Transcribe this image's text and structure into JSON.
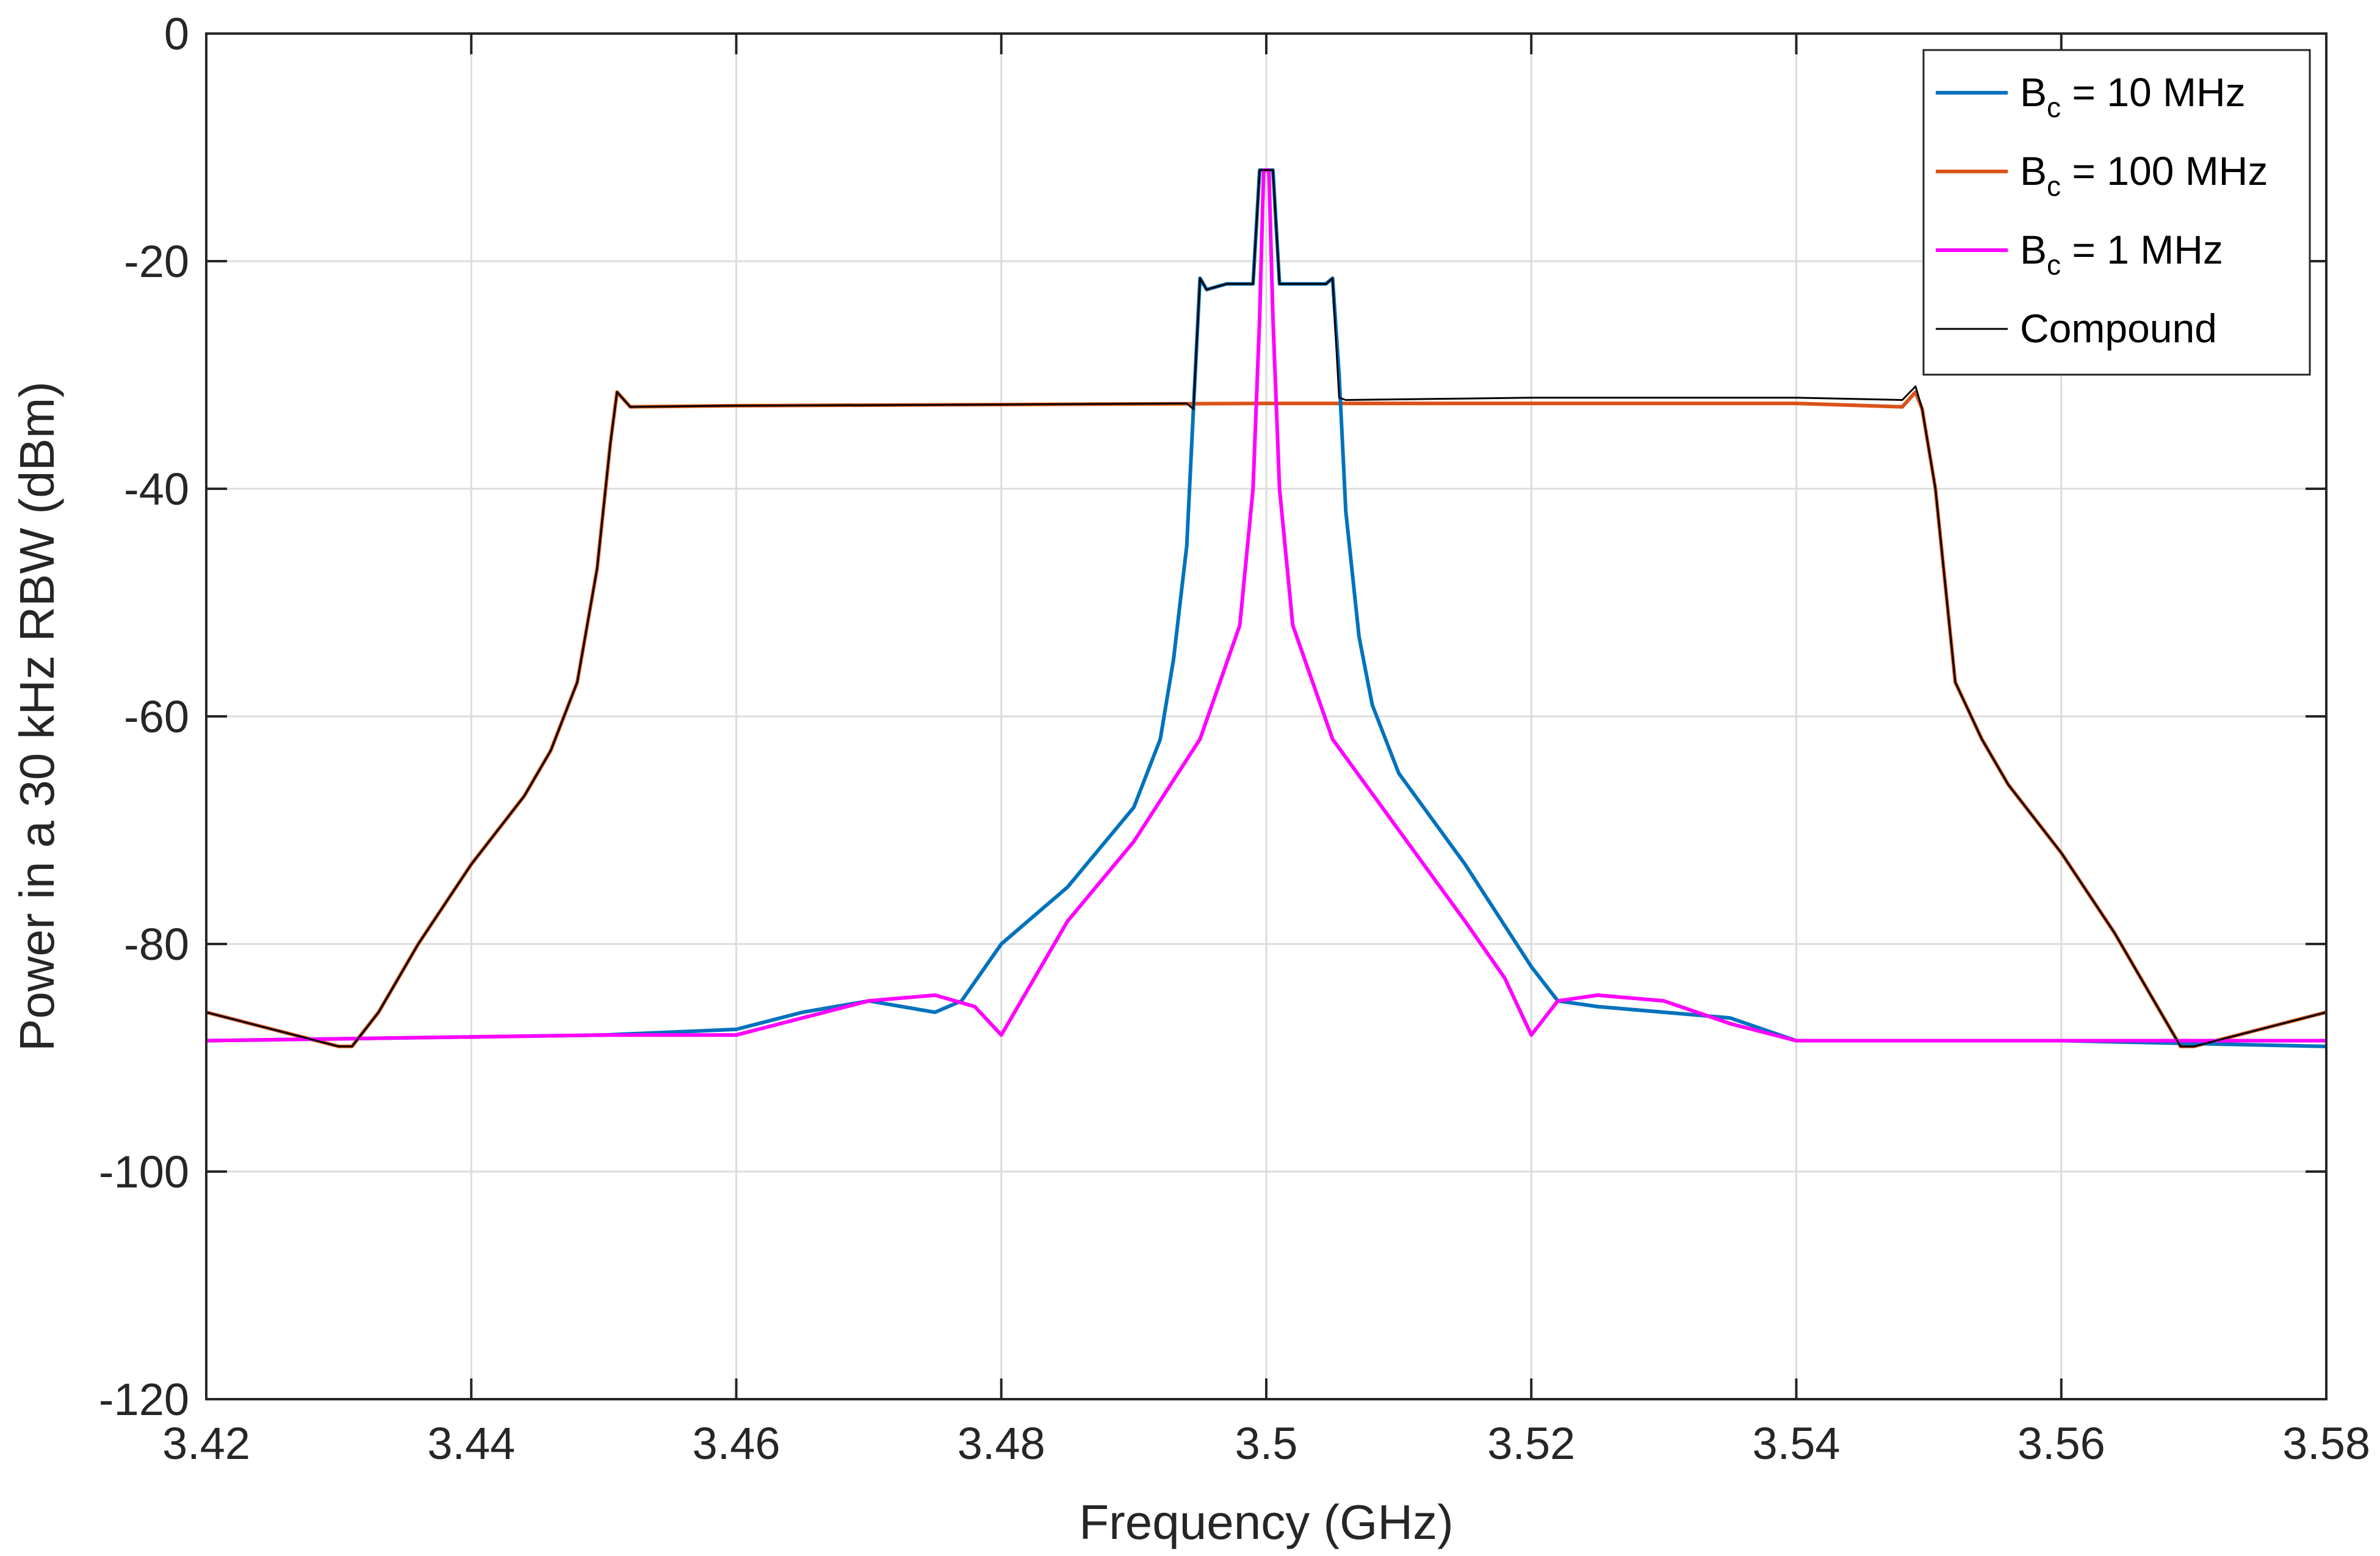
{
  "chart_data": {
    "type": "line",
    "xlabel": "Frequency (GHz)",
    "ylabel": "Power in a 30 kHz RBW (dBm)",
    "xlim": [
      3.42,
      3.58
    ],
    "ylim": [
      -120,
      0
    ],
    "grid": true,
    "legend_position": "top-right",
    "x_ticks": [
      3.42,
      3.44,
      3.46,
      3.48,
      3.5,
      3.52,
      3.54,
      3.56,
      3.58
    ],
    "x_tick_labels": [
      "3.42",
      "3.44",
      "3.46",
      "3.48",
      "3.5",
      "3.52",
      "3.54",
      "3.56",
      "3.58"
    ],
    "y_ticks": [
      0,
      -20,
      -40,
      -60,
      -80,
      -100,
      -120
    ],
    "y_tick_labels": [
      "0",
      "-20",
      "-40",
      "-60",
      "-80",
      "-100",
      "-120"
    ],
    "series": [
      {
        "name_main": "B",
        "name_sub": "c",
        "name_rest": " = 100 MHz",
        "color": "#D95319",
        "width": 6,
        "x": [
          3.42,
          3.425,
          3.43,
          3.431,
          3.433,
          3.436,
          3.44,
          3.444,
          3.446,
          3.448,
          3.4495,
          3.4505,
          3.451,
          3.452,
          3.46,
          3.48,
          3.5,
          3.52,
          3.54,
          3.548,
          3.549,
          3.5495,
          3.5505,
          3.552,
          3.554,
          3.556,
          3.56,
          3.564,
          3.567,
          3.569,
          3.57,
          3.575,
          3.58
        ],
        "y": [
          -86,
          -87.5,
          -89,
          -89,
          -86,
          -80,
          -73,
          -67,
          -63,
          -57,
          -47,
          -36,
          -31.5,
          -32.8,
          -32.7,
          -32.6,
          -32.5,
          -32.5,
          -32.5,
          -32.8,
          -31.5,
          -33,
          -40,
          -57,
          -62,
          -66,
          -72,
          -79,
          -85,
          -89,
          -89,
          -87.5,
          -86
        ]
      },
      {
        "name_main": "B",
        "name_sub": "c",
        "name_rest": " = 10 MHz",
        "color": "#0072BD",
        "width": 6,
        "x": [
          3.42,
          3.45,
          3.46,
          3.465,
          3.47,
          3.475,
          3.477,
          3.48,
          3.485,
          3.49,
          3.492,
          3.493,
          3.494,
          3.4945,
          3.495,
          3.4955,
          3.497,
          3.499,
          3.4995,
          3.5,
          3.5005,
          3.501,
          3.503,
          3.5045,
          3.505,
          3.5055,
          3.506,
          3.507,
          3.508,
          3.51,
          3.515,
          3.52,
          3.522,
          3.525,
          3.53,
          3.535,
          3.54,
          3.56,
          3.58
        ],
        "y": [
          -88.5,
          -88,
          -87.5,
          -86,
          -85,
          -86,
          -85,
          -80,
          -75,
          -68,
          -62,
          -55,
          -45,
          -33,
          -21.5,
          -22.5,
          -22,
          -22,
          -12,
          -12,
          -12,
          -22,
          -22,
          -22,
          -21.5,
          -30,
          -42,
          -53,
          -59,
          -65,
          -73,
          -82,
          -85,
          -85.5,
          -86,
          -86.5,
          -88.5,
          -88.5,
          -89
        ]
      },
      {
        "name_main": "B",
        "name_sub": "c",
        "name_rest": " = 1 MHz",
        "color": "#FF00FF",
        "width": 6,
        "x": [
          3.42,
          3.45,
          3.46,
          3.465,
          3.47,
          3.475,
          3.478,
          3.48,
          3.482,
          3.485,
          3.49,
          3.495,
          3.498,
          3.499,
          3.4995,
          3.4998,
          3.5,
          3.5002,
          3.5005,
          3.501,
          3.502,
          3.505,
          3.51,
          3.515,
          3.518,
          3.52,
          3.522,
          3.525,
          3.53,
          3.535,
          3.54,
          3.56,
          3.58
        ],
        "y": [
          -88.5,
          -88,
          -88,
          -86.5,
          -85,
          -84.5,
          -85.5,
          -88,
          -84,
          -78,
          -71,
          -62,
          -52,
          -40,
          -25,
          -12,
          -12,
          -12,
          -25,
          -40,
          -52,
          -62,
          -70,
          -78,
          -83,
          -88,
          -85,
          -84.5,
          -85,
          -87,
          -88.5,
          -88.5,
          -88.5
        ]
      },
      {
        "name_main": "Compound",
        "name_sub": "",
        "name_rest": "",
        "color": "#000000",
        "width": 3,
        "x": [
          3.42,
          3.425,
          3.43,
          3.431,
          3.433,
          3.436,
          3.44,
          3.444,
          3.446,
          3.448,
          3.4495,
          3.4505,
          3.451,
          3.452,
          3.46,
          3.48,
          3.494,
          3.4945,
          3.495,
          3.4955,
          3.497,
          3.499,
          3.4995,
          3.5,
          3.5005,
          3.501,
          3.503,
          3.5045,
          3.505,
          3.5055,
          3.506,
          3.52,
          3.54,
          3.548,
          3.549,
          3.5495,
          3.5505,
          3.552,
          3.554,
          3.556,
          3.56,
          3.564,
          3.567,
          3.569,
          3.57,
          3.575,
          3.58
        ],
        "y": [
          -86,
          -87.5,
          -89,
          -89,
          -86,
          -80,
          -73,
          -67,
          -63,
          -57,
          -47,
          -36,
          -31.5,
          -32.8,
          -32.7,
          -32.6,
          -32.5,
          -33,
          -21.5,
          -22.5,
          -22,
          -22,
          -12,
          -12,
          -12,
          -22,
          -22,
          -22,
          -21.5,
          -32,
          -32.2,
          -32,
          -32,
          -32.2,
          -31,
          -33,
          -40,
          -57,
          -62,
          -66,
          -72,
          -79,
          -85,
          -89,
          -89,
          -87.5,
          -86
        ]
      }
    ]
  }
}
